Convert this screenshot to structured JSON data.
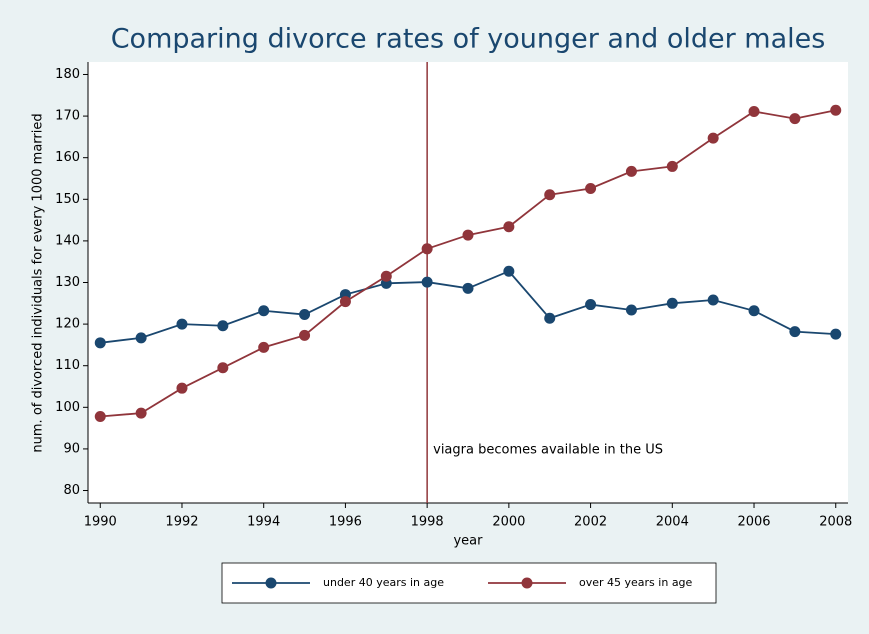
{
  "chart_data": {
    "type": "line",
    "title": "Comparing divorce rates of younger and older males",
    "x_label": "year",
    "y_label": "num. of divorced individuals for every 1000 married",
    "x": [
      1990,
      1991,
      1992,
      1993,
      1994,
      1995,
      1996,
      1997,
      1998,
      1999,
      2000,
      2001,
      2002,
      2003,
      2004,
      2005,
      2006,
      2007,
      2008
    ],
    "series": [
      {
        "name": "under 40 years in age",
        "color": "#1a476f",
        "values": [
          115.5,
          116.7,
          120,
          119.6,
          123.2,
          122.3,
          127.1,
          129.8,
          130.1,
          128.6,
          132.7,
          121.4,
          124.7,
          123.4,
          125,
          125.8,
          123.2,
          118.2,
          117.6
        ]
      },
      {
        "name": "over 45 years in age",
        "color": "#90353b",
        "values": [
          97.8,
          98.6,
          104.6,
          109.5,
          114.4,
          117.3,
          125.4,
          131.5,
          138.1,
          141.4,
          143.4,
          151.1,
          152.6,
          156.7,
          157.9,
          164.7,
          171.1,
          169.4,
          171.4
        ]
      }
    ],
    "xlim": [
      1989.7,
      2008.3
    ],
    "xticks": [
      1990,
      1992,
      1994,
      1996,
      1998,
      2000,
      2002,
      2004,
      2006,
      2008
    ],
    "ylim": [
      77,
      183
    ],
    "yticks": [
      80,
      90,
      100,
      110,
      120,
      130,
      140,
      150,
      160,
      170,
      180
    ],
    "grid": false,
    "legend": "bottom",
    "vline": {
      "x": 1998,
      "color": "#90353b",
      "label": "viagra becomes available in the US"
    }
  }
}
